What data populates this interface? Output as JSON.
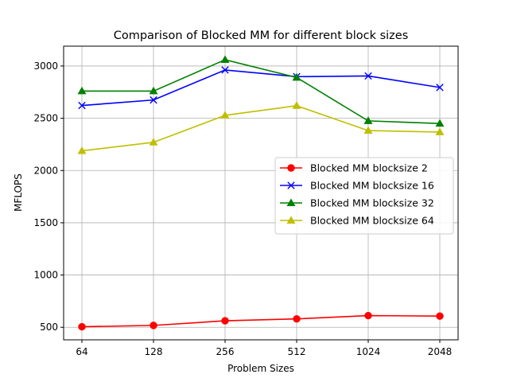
{
  "chart_data": {
    "type": "line",
    "title": "Comparison of Blocked MM for different block sizes",
    "xlabel": "Problem Sizes",
    "ylabel": "MFLOPS",
    "categories": [
      "64",
      "128",
      "256",
      "512",
      "1024",
      "2048"
    ],
    "ylim": [
      380,
      3190
    ],
    "yticks": [
      500,
      1000,
      1500,
      2000,
      2500,
      3000
    ],
    "grid": true,
    "legend_position": "center-right",
    "series": [
      {
        "name": "Blocked MM blocksize 2",
        "color": "#ff0000",
        "marker": "circle",
        "values": [
          505,
          518,
          562,
          580,
          612,
          607
        ]
      },
      {
        "name": "Blocked MM blocksize 16",
        "color": "#0000ff",
        "marker": "x",
        "values": [
          2622,
          2675,
          2962,
          2898,
          2905,
          2795
        ]
      },
      {
        "name": "Blocked MM blocksize 32",
        "color": "#008000",
        "marker": "triangle",
        "values": [
          2760,
          2760,
          3060,
          2890,
          2475,
          2450
        ]
      },
      {
        "name": "Blocked MM blocksize 64",
        "color": "#bfbf00",
        "marker": "triangle",
        "values": [
          2188,
          2270,
          2528,
          2620,
          2382,
          2368
        ]
      }
    ]
  }
}
